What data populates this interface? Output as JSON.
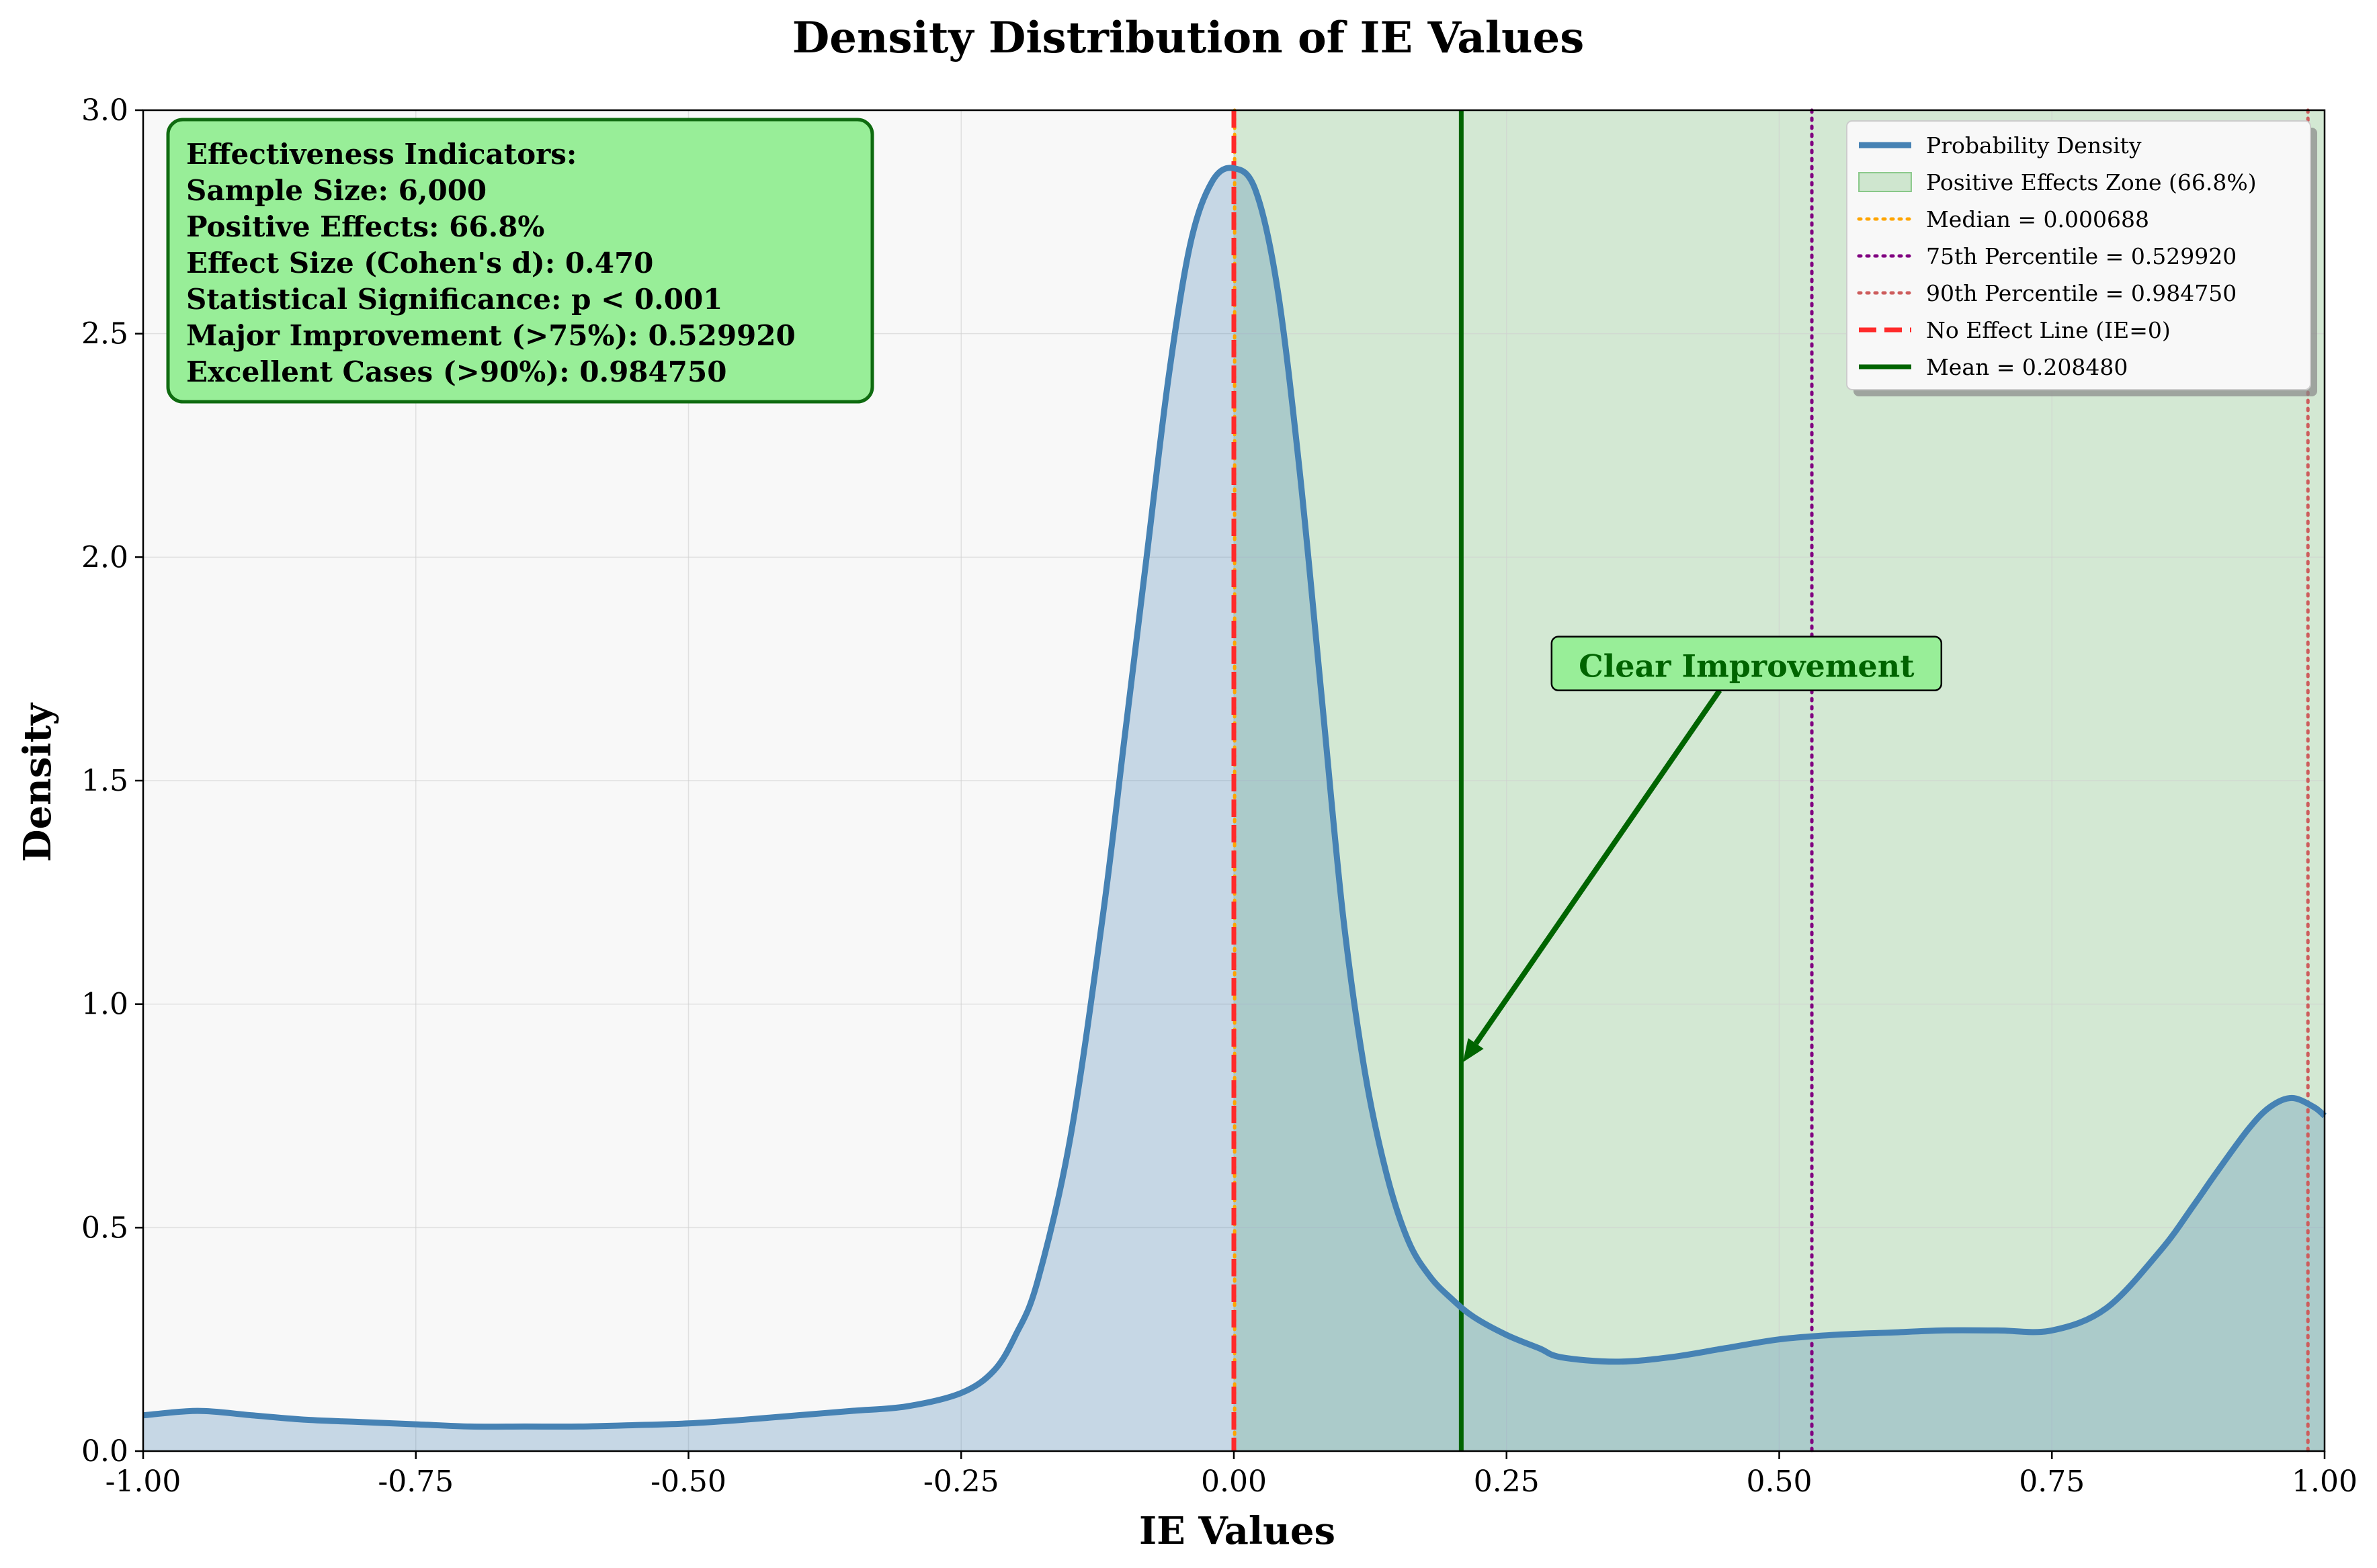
{
  "chart_data": {
    "type": "area",
    "title": "Density Distribution of IE Values",
    "xlabel": "IE Values",
    "ylabel": "Density",
    "xlim": [
      -1.0,
      1.0
    ],
    "ylim": [
      0.0,
      3.0
    ],
    "xticks": [
      "-1.00",
      "-0.75",
      "-0.50",
      "-0.25",
      "0.00",
      "0.25",
      "0.50",
      "0.75",
      "1.00"
    ],
    "xtick_values": [
      -1.0,
      -0.75,
      -0.5,
      -0.25,
      0.0,
      0.25,
      0.5,
      0.75,
      1.0
    ],
    "yticks": [
      "0.0",
      "0.5",
      "1.0",
      "1.5",
      "2.0",
      "2.5",
      "3.0"
    ],
    "ytick_values": [
      0.0,
      0.5,
      1.0,
      1.5,
      2.0,
      2.5,
      3.0
    ],
    "grid": true,
    "legend_position": "top-right",
    "series": [
      {
        "name": "Probability Density",
        "color": "#4682b4",
        "x": [
          -1.0,
          -0.95,
          -0.9,
          -0.85,
          -0.8,
          -0.75,
          -0.7,
          -0.65,
          -0.6,
          -0.55,
          -0.5,
          -0.45,
          -0.4,
          -0.35,
          -0.3,
          -0.25,
          -0.22,
          -0.2,
          -0.18,
          -0.15,
          -0.12,
          -0.1,
          -0.08,
          -0.06,
          -0.04,
          -0.02,
          0.0,
          0.02,
          0.04,
          0.06,
          0.08,
          0.1,
          0.12,
          0.14,
          0.16,
          0.18,
          0.2,
          0.22,
          0.25,
          0.28,
          0.3,
          0.35,
          0.4,
          0.45,
          0.5,
          0.55,
          0.6,
          0.65,
          0.7,
          0.75,
          0.8,
          0.85,
          0.88,
          0.9,
          0.93,
          0.95,
          0.97,
          0.99,
          1.0
        ],
        "y": [
          0.08,
          0.09,
          0.08,
          0.07,
          0.065,
          0.06,
          0.055,
          0.055,
          0.055,
          0.058,
          0.062,
          0.07,
          0.08,
          0.09,
          0.1,
          0.13,
          0.18,
          0.26,
          0.38,
          0.7,
          1.2,
          1.6,
          2.0,
          2.4,
          2.7,
          2.84,
          2.87,
          2.82,
          2.6,
          2.2,
          1.7,
          1.2,
          0.85,
          0.62,
          0.47,
          0.39,
          0.34,
          0.3,
          0.26,
          0.23,
          0.21,
          0.2,
          0.21,
          0.23,
          0.25,
          0.26,
          0.265,
          0.27,
          0.27,
          0.27,
          0.32,
          0.45,
          0.55,
          0.62,
          0.72,
          0.77,
          0.79,
          0.77,
          0.75
        ]
      }
    ],
    "shaded_region": {
      "name": "Positive Effects Zone (66.8%)",
      "x_from": 0.0,
      "x_to": 1.0,
      "color": "#2ca02c"
    },
    "vlines": [
      {
        "name": "Median = 0.000688",
        "x": 0.000688,
        "color": "#ffa500",
        "style": "dotted"
      },
      {
        "name": "75th Percentile = 0.529920",
        "x": 0.52992,
        "color": "#800080",
        "style": "dotted"
      },
      {
        "name": "90th Percentile = 0.984750",
        "x": 0.98475,
        "color": "#cd5c5c",
        "style": "dotted"
      },
      {
        "name": "No Effect Line (IE=0)",
        "x": 0.0,
        "color": "#ff2a2a",
        "style": "dashed"
      },
      {
        "name": "Mean = 0.208480",
        "x": 0.20848,
        "color": "#006400",
        "style": "solid"
      }
    ],
    "annotation": {
      "text": "Clear Improvement",
      "target_x": 0.21,
      "target_y": 0.87,
      "text_x": 0.47,
      "text_y": 1.75
    }
  },
  "stats_box": {
    "lines": [
      "Effectiveness Indicators:",
      "Sample Size: 6,000",
      "Positive Effects: 66.8%",
      "Effect Size (Cohen's d): 0.470",
      "Statistical Significance: p < 0.001",
      "Major Improvement (>75%): 0.529920",
      "Excellent Cases (>90%): 0.984750"
    ]
  }
}
